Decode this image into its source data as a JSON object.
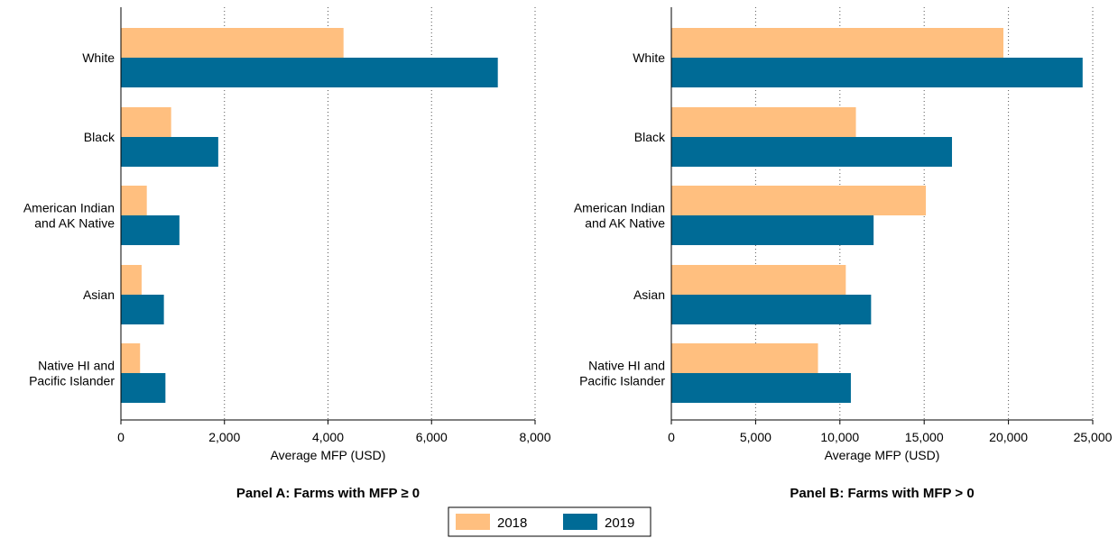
{
  "colors": {
    "2018": "#ffbf7f",
    "2019": "#006b96"
  },
  "legend": {
    "placement": "bottom-center",
    "items": [
      {
        "label": "2018",
        "color": "#ffbf7f"
      },
      {
        "label": "2019",
        "color": "#006b96"
      }
    ]
  },
  "chart_data": [
    {
      "type": "bar",
      "orientation": "horizontal",
      "title": "Panel A: Farms with MFP ≥ 0",
      "xlabel": "Average MFP (USD)",
      "xlim": [
        0,
        8000
      ],
      "xticks": [
        0,
        2000,
        4000,
        6000,
        8000
      ],
      "xtick_labels": [
        "0",
        "2,000",
        "4,000",
        "6,000",
        "8,000"
      ],
      "grid": "vertical dotted",
      "categories": [
        [
          "White"
        ],
        [
          "Black"
        ],
        [
          "American Indian",
          "and AK Native"
        ],
        [
          "Asian"
        ],
        [
          "Native HI and",
          "Pacific Islander"
        ]
      ],
      "series": [
        {
          "name": "2018",
          "values": [
            4300,
            970,
            500,
            400,
            370
          ]
        },
        {
          "name": "2019",
          "values": [
            7280,
            1880,
            1130,
            830,
            860
          ]
        }
      ]
    },
    {
      "type": "bar",
      "orientation": "horizontal",
      "title": "Panel B: Farms with MFP > 0",
      "xlabel": "Average MFP (USD)",
      "xlim": [
        0,
        25000
      ],
      "xticks": [
        0,
        5000,
        10000,
        15000,
        20000,
        25000
      ],
      "xtick_labels": [
        "0",
        "5,000",
        "10,000",
        "15,000",
        "20,000",
        "25,000"
      ],
      "grid": "vertical dotted",
      "categories": [
        [
          "White"
        ],
        [
          "Black"
        ],
        [
          "American Indian",
          "and AK Native"
        ],
        [
          "Asian"
        ],
        [
          "Native HI and",
          "Pacific Islander"
        ]
      ],
      "series": [
        {
          "name": "2018",
          "values": [
            19700,
            10950,
            15100,
            10350,
            8700
          ]
        },
        {
          "name": "2019",
          "values": [
            24400,
            16650,
            12000,
            11850,
            10650
          ]
        }
      ]
    }
  ]
}
